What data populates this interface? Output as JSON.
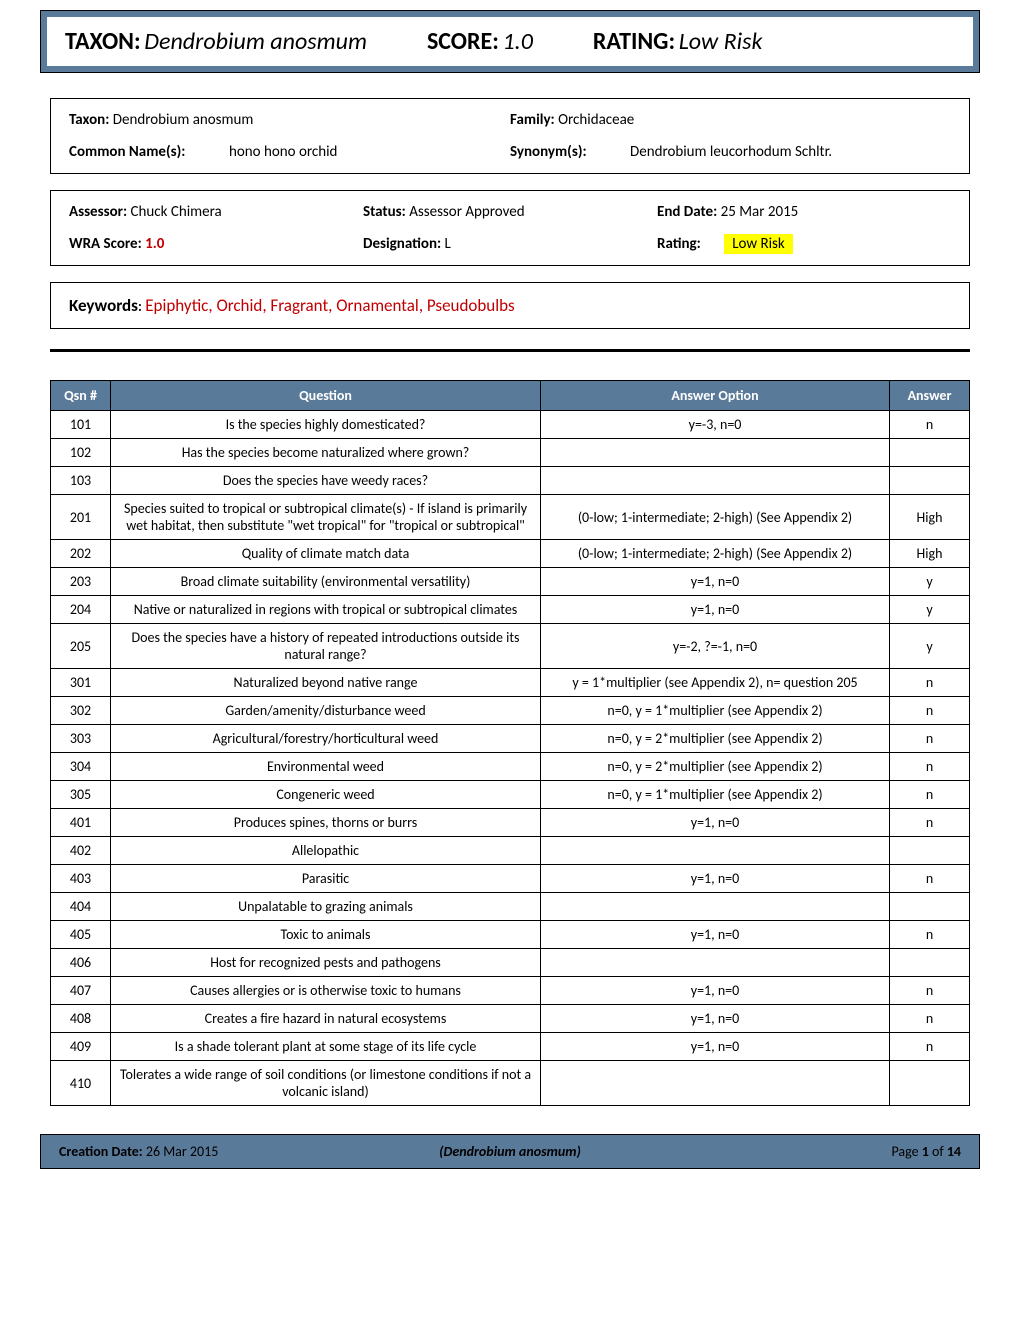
{
  "header": {
    "taxon_label": "TAXON",
    "taxon_value": "Dendrobium anosmum",
    "score_label": "SCORE",
    "score_value": "1.0",
    "rating_label": "RATING",
    "rating_value": "Low Risk"
  },
  "info_box": {
    "taxon_label": "Taxon:",
    "taxon_value": "Dendrobium anosmum",
    "family_label": "Family:",
    "family_value": "Orchidaceae",
    "common_label": "Common Name(s):",
    "common_value": "hono hono orchid",
    "synonym_label": "Synonym(s):",
    "synonym_value": "Dendrobium leucorhodum Schltr."
  },
  "assess_box": {
    "assessor_label": "Assessor:",
    "assessor_value": "Chuck Chimera",
    "status_label": "Status:",
    "status_value": "Assessor Approved",
    "end_label": "End Date:",
    "end_value": "25 Mar 2015",
    "wra_label": "WRA Score:",
    "wra_value": "1.0",
    "desig_label": "Designation:",
    "desig_value": "L",
    "rating_label": "Rating:",
    "rating_value": "Low Risk"
  },
  "keywords_box": {
    "label": "Keywords",
    "colon": ":",
    "value": "Epiphytic, Orchid, Fragrant, Ornamental, Pseudobulbs"
  },
  "table": {
    "headers": {
      "qsn": "Qsn #",
      "question": "Question",
      "option": "Answer Option",
      "answer": "Answer"
    },
    "col_widths": {
      "qsn": "60px",
      "question": "auto",
      "option": "auto",
      "answer": "80px"
    },
    "header_bg": "#5a7a9a",
    "header_fg": "#ffffff",
    "rows": [
      {
        "q": "101",
        "question": "Is the species highly domesticated?",
        "option": "y=-3, n=0",
        "answer": "n"
      },
      {
        "q": "102",
        "question": "Has the species become naturalized where grown?",
        "option": "",
        "answer": ""
      },
      {
        "q": "103",
        "question": "Does the species have weedy races?",
        "option": "",
        "answer": ""
      },
      {
        "q": "201",
        "question": "Species suited to tropical or subtropical climate(s) - If island is primarily wet habitat, then substitute \"wet tropical\" for \"tropical or subtropical\"",
        "option": "(0-low; 1-intermediate; 2-high)  (See Appendix 2)",
        "answer": "High"
      },
      {
        "q": "202",
        "question": "Quality of climate match data",
        "option": "(0-low; 1-intermediate; 2-high)  (See Appendix 2)",
        "answer": "High"
      },
      {
        "q": "203",
        "question": "Broad climate suitability (environmental versatility)",
        "option": "y=1, n=0",
        "answer": "y"
      },
      {
        "q": "204",
        "question": "Native or naturalized in regions with tropical or subtropical climates",
        "option": "y=1, n=0",
        "answer": "y"
      },
      {
        "q": "205",
        "question": "Does the species have a history of repeated introductions outside its natural range?",
        "option": "y=-2, ?=-1, n=0",
        "answer": "y"
      },
      {
        "q": "301",
        "question": "Naturalized beyond native range",
        "option": "y = 1*multiplier (see Appendix 2), n= question 205",
        "answer": "n"
      },
      {
        "q": "302",
        "question": "Garden/amenity/disturbance weed",
        "option": "n=0, y = 1*multiplier (see Appendix 2)",
        "answer": "n"
      },
      {
        "q": "303",
        "question": "Agricultural/forestry/horticultural weed",
        "option": "n=0, y = 2*multiplier (see Appendix 2)",
        "answer": "n"
      },
      {
        "q": "304",
        "question": "Environmental weed",
        "option": "n=0, y = 2*multiplier (see Appendix 2)",
        "answer": "n"
      },
      {
        "q": "305",
        "question": "Congeneric weed",
        "option": "n=0, y = 1*multiplier (see Appendix 2)",
        "answer": "n"
      },
      {
        "q": "401",
        "question": "Produces spines, thorns or burrs",
        "option": "y=1, n=0",
        "answer": "n"
      },
      {
        "q": "402",
        "question": "Allelopathic",
        "option": "",
        "answer": ""
      },
      {
        "q": "403",
        "question": "Parasitic",
        "option": "y=1, n=0",
        "answer": "n"
      },
      {
        "q": "404",
        "question": "Unpalatable to grazing animals",
        "option": "",
        "answer": ""
      },
      {
        "q": "405",
        "question": "Toxic to animals",
        "option": "y=1, n=0",
        "answer": "n"
      },
      {
        "q": "406",
        "question": "Host for recognized pests and pathogens",
        "option": "",
        "answer": ""
      },
      {
        "q": "407",
        "question": "Causes allergies or is otherwise toxic to humans",
        "option": "y=1, n=0",
        "answer": "n"
      },
      {
        "q": "408",
        "question": "Creates a fire hazard in natural ecosystems",
        "option": "y=1, n=0",
        "answer": "n"
      },
      {
        "q": "409",
        "question": "Is a shade tolerant plant at some stage of its life cycle",
        "option": "y=1, n=0",
        "answer": "n"
      },
      {
        "q": "410",
        "question": "Tolerates a wide range of soil conditions (or limestone conditions if not a volcanic island)",
        "option": "",
        "answer": ""
      }
    ]
  },
  "footer": {
    "creation_label": "Creation Date:",
    "creation_value": "26 Mar 2015",
    "taxon": "(Dendrobium anosmum)",
    "page_label": "Page",
    "page_num": "1",
    "of_label": "of",
    "page_total": "14"
  }
}
